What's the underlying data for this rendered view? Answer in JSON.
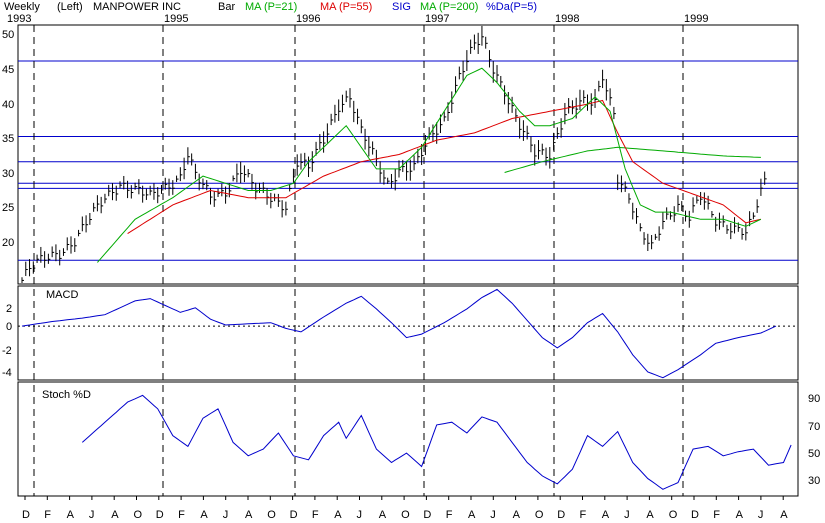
{
  "header": {
    "period": "Weekly",
    "axis_side": "(Left)",
    "ticker": "MANPOWER INC",
    "bar_label": "Bar",
    "ma21": "MA (P=21)",
    "ma55": "MA (P=55)",
    "sig": "SIG",
    "ma200": "MA (P=200)",
    "da": "%Da(P=5)"
  },
  "colors": {
    "price": "#000000",
    "ma21": "#00aa00",
    "ma55": "#dd0000",
    "ma200": "#00aa00",
    "macd": "#0000cc",
    "stoch": "#0000cc",
    "hline": "#0000cc",
    "sig_label": "#0000cc",
    "da_label": "#0000cc"
  },
  "year_labels": [
    "1993",
    "1995",
    "1996",
    "1997",
    "1998",
    "1999"
  ],
  "month_labels": [
    "D",
    "F",
    "A",
    "J",
    "A",
    "O",
    "D",
    "F",
    "A",
    "J",
    "A",
    "O",
    "D",
    "F",
    "A",
    "J",
    "A",
    "O",
    "D",
    "F",
    "A",
    "J",
    "A",
    "O",
    "D",
    "F",
    "A",
    "J",
    "A",
    "O",
    "D",
    "F",
    "A",
    "J",
    "A"
  ],
  "chart_data": [
    {
      "type": "bar",
      "title": "",
      "ylim": [
        15,
        51
      ],
      "yticks": [
        "20",
        "25",
        "30",
        "35",
        "40",
        "45",
        "50"
      ],
      "horizontal_lines": [
        18.3,
        28.3,
        29.0,
        32.0,
        35.5,
        46.0
      ],
      "price_anchors": [
        [
          0,
          15.5
        ],
        [
          2,
          17
        ],
        [
          6,
          18.5
        ],
        [
          10,
          19.5
        ],
        [
          14,
          21
        ],
        [
          18,
          24
        ],
        [
          22,
          27
        ],
        [
          26,
          29
        ],
        [
          30,
          28
        ],
        [
          34,
          27
        ],
        [
          38,
          28.5
        ],
        [
          42,
          30
        ],
        [
          44,
          33
        ],
        [
          46,
          30
        ],
        [
          50,
          27
        ],
        [
          54,
          28
        ],
        [
          58,
          31
        ],
        [
          62,
          28
        ],
        [
          66,
          27
        ],
        [
          70,
          26
        ],
        [
          73,
          32
        ],
        [
          76,
          31
        ],
        [
          80,
          35
        ],
        [
          84,
          40
        ],
        [
          87,
          41
        ],
        [
          90,
          36
        ],
        [
          94,
          32
        ],
        [
          97,
          29
        ],
        [
          100,
          31
        ],
        [
          104,
          31
        ],
        [
          108,
          35
        ],
        [
          112,
          38
        ],
        [
          116,
          44
        ],
        [
          120,
          48
        ],
        [
          122,
          49
        ],
        [
          125,
          45
        ],
        [
          128,
          42
        ],
        [
          132,
          37
        ],
        [
          136,
          33
        ],
        [
          140,
          33
        ],
        [
          144,
          39
        ],
        [
          148,
          40
        ],
        [
          152,
          40
        ],
        [
          154,
          44
        ],
        [
          157,
          39
        ],
        [
          158,
          30
        ],
        [
          161,
          27
        ],
        [
          164,
          22
        ],
        [
          167,
          20
        ],
        [
          170,
          24
        ],
        [
          174,
          26
        ],
        [
          177,
          24
        ],
        [
          180,
          27
        ],
        [
          184,
          24
        ],
        [
          188,
          23
        ],
        [
          192,
          22
        ],
        [
          194,
          24
        ],
        [
          196,
          28
        ],
        [
          197,
          29
        ]
      ],
      "ma21_anchors": [
        [
          20,
          18
        ],
        [
          30,
          24
        ],
        [
          40,
          27
        ],
        [
          48,
          30
        ],
        [
          54,
          29
        ],
        [
          60,
          28
        ],
        [
          66,
          28
        ],
        [
          72,
          29
        ],
        [
          76,
          32
        ],
        [
          82,
          35
        ],
        [
          86,
          37
        ],
        [
          90,
          34
        ],
        [
          94,
          31
        ],
        [
          100,
          31
        ],
        [
          106,
          34
        ],
        [
          112,
          39
        ],
        [
          118,
          44
        ],
        [
          122,
          45
        ],
        [
          126,
          43
        ],
        [
          132,
          39
        ],
        [
          136,
          37
        ],
        [
          140,
          37
        ],
        [
          146,
          38
        ],
        [
          152,
          41
        ],
        [
          156,
          39
        ],
        [
          160,
          31
        ],
        [
          164,
          26
        ],
        [
          168,
          25
        ],
        [
          172,
          25
        ],
        [
          180,
          24
        ],
        [
          186,
          24
        ],
        [
          192,
          23
        ],
        [
          196,
          24
        ]
      ],
      "ma55_anchors": [
        [
          28,
          22
        ],
        [
          40,
          26
        ],
        [
          50,
          28
        ],
        [
          60,
          27
        ],
        [
          70,
          27
        ],
        [
          80,
          30
        ],
        [
          90,
          32
        ],
        [
          100,
          33
        ],
        [
          110,
          35
        ],
        [
          120,
          36
        ],
        [
          130,
          38
        ],
        [
          140,
          39
        ],
        [
          150,
          40
        ],
        [
          154,
          40.5
        ],
        [
          158,
          36
        ],
        [
          162,
          32
        ],
        [
          170,
          29
        ],
        [
          178,
          27.5
        ],
        [
          186,
          26
        ],
        [
          192,
          23.5
        ],
        [
          196,
          24
        ]
      ],
      "ma200_anchors": [
        [
          128,
          30.5
        ],
        [
          138,
          32
        ],
        [
          150,
          33.5
        ],
        [
          158,
          34
        ],
        [
          170,
          33.5
        ],
        [
          186,
          32.8
        ],
        [
          196,
          32.6
        ]
      ]
    },
    {
      "type": "line",
      "title": "MACD",
      "ylim": [
        -4.7,
        3.5
      ],
      "yticks": [
        "2",
        "0",
        "-2",
        "-4"
      ],
      "anchors": [
        [
          0,
          0
        ],
        [
          8,
          0.4
        ],
        [
          16,
          0.7
        ],
        [
          22,
          1.0
        ],
        [
          26,
          1.6
        ],
        [
          30,
          2.2
        ],
        [
          34,
          2.4
        ],
        [
          38,
          1.8
        ],
        [
          42,
          1.2
        ],
        [
          46,
          1.6
        ],
        [
          50,
          0.6
        ],
        [
          54,
          0.1
        ],
        [
          60,
          0.2
        ],
        [
          66,
          0.3
        ],
        [
          70,
          -0.2
        ],
        [
          74,
          -0.5
        ],
        [
          80,
          0.8
        ],
        [
          86,
          2.0
        ],
        [
          90,
          2.6
        ],
        [
          94,
          1.5
        ],
        [
          98,
          0.3
        ],
        [
          102,
          -1.0
        ],
        [
          106,
          -0.7
        ],
        [
          112,
          0.3
        ],
        [
          118,
          1.5
        ],
        [
          122,
          2.5
        ],
        [
          126,
          3.2
        ],
        [
          130,
          2.0
        ],
        [
          134,
          0.5
        ],
        [
          138,
          -1.0
        ],
        [
          142,
          -1.9
        ],
        [
          146,
          -1.0
        ],
        [
          150,
          0.3
        ],
        [
          154,
          1.1
        ],
        [
          158,
          -0.5
        ],
        [
          162,
          -2.5
        ],
        [
          166,
          -4.0
        ],
        [
          170,
          -4.5
        ],
        [
          174,
          -3.8
        ],
        [
          180,
          -2.5
        ],
        [
          184,
          -1.5
        ],
        [
          190,
          -1.0
        ],
        [
          196,
          -0.6
        ],
        [
          200,
          0.0
        ]
      ]
    },
    {
      "type": "line",
      "title": "Stoch %D",
      "ylim": [
        15,
        100
      ],
      "yticks": [
        "90",
        "70",
        "50",
        "30"
      ],
      "anchors": [
        [
          16,
          55
        ],
        [
          20,
          65
        ],
        [
          24,
          75
        ],
        [
          28,
          85
        ],
        [
          32,
          90
        ],
        [
          36,
          80
        ],
        [
          40,
          60
        ],
        [
          44,
          52
        ],
        [
          48,
          73
        ],
        [
          52,
          80
        ],
        [
          56,
          55
        ],
        [
          60,
          45
        ],
        [
          64,
          50
        ],
        [
          68,
          62
        ],
        [
          72,
          45
        ],
        [
          76,
          42
        ],
        [
          80,
          60
        ],
        [
          84,
          70
        ],
        [
          86,
          58
        ],
        [
          90,
          75
        ],
        [
          94,
          50
        ],
        [
          98,
          40
        ],
        [
          102,
          47
        ],
        [
          106,
          37
        ],
        [
          110,
          68
        ],
        [
          114,
          70
        ],
        [
          118,
          62
        ],
        [
          122,
          74
        ],
        [
          126,
          70
        ],
        [
          130,
          55
        ],
        [
          134,
          40
        ],
        [
          138,
          30
        ],
        [
          142,
          24
        ],
        [
          146,
          35
        ],
        [
          150,
          60
        ],
        [
          154,
          52
        ],
        [
          158,
          63
        ],
        [
          162,
          40
        ],
        [
          166,
          28
        ],
        [
          170,
          20
        ],
        [
          174,
          25
        ],
        [
          178,
          50
        ],
        [
          182,
          52
        ],
        [
          186,
          45
        ],
        [
          190,
          48
        ],
        [
          194,
          50
        ],
        [
          198,
          38
        ],
        [
          202,
          40
        ],
        [
          204,
          53
        ]
      ]
    }
  ]
}
